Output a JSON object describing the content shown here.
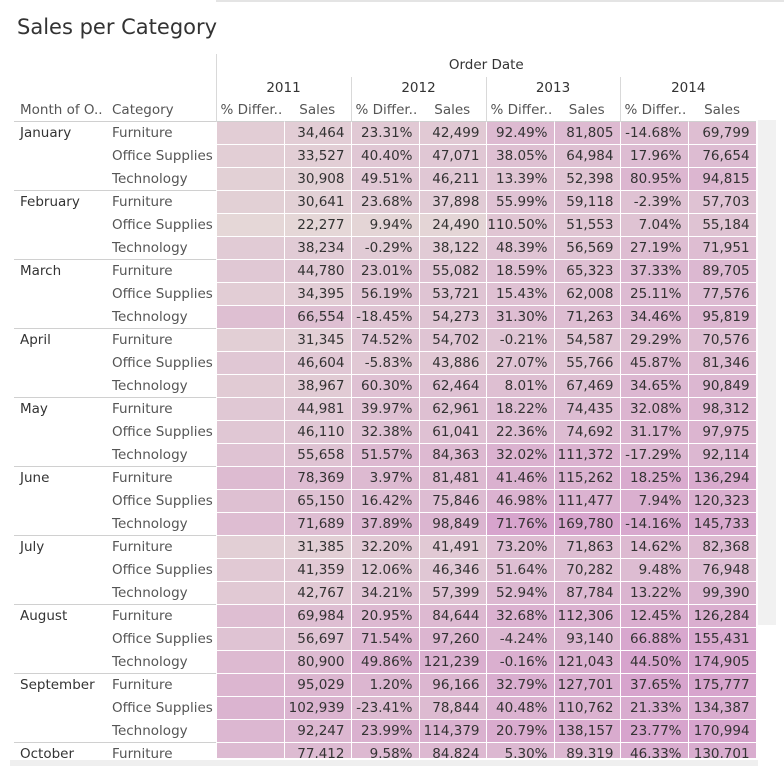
{
  "title": "Sales per Category",
  "header": {
    "order_date": "Order Date",
    "month_col": "Month of O..",
    "category_col": "Category",
    "diff_col": "% Differ..",
    "sales_col": "Sales"
  },
  "colors": {
    "low": "#e6ddd8",
    "high": "#d7a4cd"
  },
  "chart_data": {
    "type": "table",
    "title": "Sales per Category",
    "columns": [
      "2011",
      "2012",
      "2013",
      "2014"
    ],
    "rows": [
      {
        "month": "January",
        "categories": [
          {
            "name": "Furniture",
            "diff": [
              "",
              "23.31%",
              "92.49%",
              "-14.68%"
            ],
            "sales": [
              "34,464",
              "42,499",
              "81,805",
              "69,799"
            ]
          },
          {
            "name": "Office Supplies",
            "diff": [
              "",
              "40.40%",
              "38.05%",
              "17.96%"
            ],
            "sales": [
              "33,527",
              "47,071",
              "64,984",
              "76,654"
            ]
          },
          {
            "name": "Technology",
            "diff": [
              "",
              "49.51%",
              "13.39%",
              "80.95%"
            ],
            "sales": [
              "30,908",
              "46,211",
              "52,398",
              "94,815"
            ]
          }
        ]
      },
      {
        "month": "February",
        "categories": [
          {
            "name": "Furniture",
            "diff": [
              "",
              "23.68%",
              "55.99%",
              "-2.39%"
            ],
            "sales": [
              "30,641",
              "37,898",
              "59,118",
              "57,703"
            ]
          },
          {
            "name": "Office Supplies",
            "diff": [
              "",
              "9.94%",
              "110.50%",
              "7.04%"
            ],
            "sales": [
              "22,277",
              "24,490",
              "51,553",
              "55,184"
            ]
          },
          {
            "name": "Technology",
            "diff": [
              "",
              "-0.29%",
              "48.39%",
              "27.19%"
            ],
            "sales": [
              "38,234",
              "38,122",
              "56,569",
              "71,951"
            ]
          }
        ]
      },
      {
        "month": "March",
        "categories": [
          {
            "name": "Furniture",
            "diff": [
              "",
              "23.01%",
              "18.59%",
              "37.33%"
            ],
            "sales": [
              "44,780",
              "55,082",
              "65,323",
              "89,705"
            ]
          },
          {
            "name": "Office Supplies",
            "diff": [
              "",
              "56.19%",
              "15.43%",
              "25.11%"
            ],
            "sales": [
              "34,395",
              "53,721",
              "62,008",
              "77,576"
            ]
          },
          {
            "name": "Technology",
            "diff": [
              "",
              "-18.45%",
              "31.30%",
              "34.46%"
            ],
            "sales": [
              "66,554",
              "54,273",
              "71,263",
              "95,819"
            ]
          }
        ]
      },
      {
        "month": "April",
        "categories": [
          {
            "name": "Furniture",
            "diff": [
              "",
              "74.52%",
              "-0.21%",
              "29.29%"
            ],
            "sales": [
              "31,345",
              "54,702",
              "54,587",
              "70,576"
            ]
          },
          {
            "name": "Office Supplies",
            "diff": [
              "",
              "-5.83%",
              "27.07%",
              "45.87%"
            ],
            "sales": [
              "46,604",
              "43,886",
              "55,766",
              "81,346"
            ]
          },
          {
            "name": "Technology",
            "diff": [
              "",
              "60.30%",
              "8.01%",
              "34.65%"
            ],
            "sales": [
              "38,967",
              "62,464",
              "67,469",
              "90,849"
            ]
          }
        ]
      },
      {
        "month": "May",
        "categories": [
          {
            "name": "Furniture",
            "diff": [
              "",
              "39.97%",
              "18.22%",
              "32.08%"
            ],
            "sales": [
              "44,981",
              "62,961",
              "74,435",
              "98,312"
            ]
          },
          {
            "name": "Office Supplies",
            "diff": [
              "",
              "32.38%",
              "22.36%",
              "31.17%"
            ],
            "sales": [
              "46,110",
              "61,041",
              "74,692",
              "97,975"
            ]
          },
          {
            "name": "Technology",
            "diff": [
              "",
              "51.57%",
              "32.02%",
              "-17.29%"
            ],
            "sales": [
              "55,658",
              "84,363",
              "111,372",
              "92,114"
            ]
          }
        ]
      },
      {
        "month": "June",
        "categories": [
          {
            "name": "Furniture",
            "diff": [
              "",
              "3.97%",
              "41.46%",
              "18.25%"
            ],
            "sales": [
              "78,369",
              "81,481",
              "115,262",
              "136,294"
            ]
          },
          {
            "name": "Office Supplies",
            "diff": [
              "",
              "16.42%",
              "46.98%",
              "7.94%"
            ],
            "sales": [
              "65,150",
              "75,846",
              "111,477",
              "120,323"
            ]
          },
          {
            "name": "Technology",
            "diff": [
              "",
              "37.89%",
              "71.76%",
              "-14.16%"
            ],
            "sales": [
              "71,689",
              "98,849",
              "169,780",
              "145,733"
            ]
          }
        ]
      },
      {
        "month": "July",
        "categories": [
          {
            "name": "Furniture",
            "diff": [
              "",
              "32.20%",
              "73.20%",
              "14.62%"
            ],
            "sales": [
              "31,385",
              "41,491",
              "71,863",
              "82,368"
            ]
          },
          {
            "name": "Office Supplies",
            "diff": [
              "",
              "12.06%",
              "51.64%",
              "9.48%"
            ],
            "sales": [
              "41,359",
              "46,346",
              "70,282",
              "76,948"
            ]
          },
          {
            "name": "Technology",
            "diff": [
              "",
              "34.21%",
              "52.94%",
              "13.22%"
            ],
            "sales": [
              "42,767",
              "57,399",
              "87,784",
              "99,390"
            ]
          }
        ]
      },
      {
        "month": "August",
        "categories": [
          {
            "name": "Furniture",
            "diff": [
              "",
              "20.95%",
              "32.68%",
              "12.45%"
            ],
            "sales": [
              "69,984",
              "84,644",
              "112,306",
              "126,284"
            ]
          },
          {
            "name": "Office Supplies",
            "diff": [
              "",
              "71.54%",
              "-4.24%",
              "66.88%"
            ],
            "sales": [
              "56,697",
              "97,260",
              "93,140",
              "155,431"
            ]
          },
          {
            "name": "Technology",
            "diff": [
              "",
              "49.86%",
              "-0.16%",
              "44.50%"
            ],
            "sales": [
              "80,900",
              "121,239",
              "121,043",
              "174,905"
            ]
          }
        ]
      },
      {
        "month": "September",
        "categories": [
          {
            "name": "Furniture",
            "diff": [
              "",
              "1.20%",
              "32.79%",
              "37.65%"
            ],
            "sales": [
              "95,029",
              "96,166",
              "127,701",
              "175,777"
            ]
          },
          {
            "name": "Office Supplies",
            "diff": [
              "",
              "-23.41%",
              "40.48%",
              "21.33%"
            ],
            "sales": [
              "102,939",
              "78,844",
              "110,762",
              "134,387"
            ]
          },
          {
            "name": "Technology",
            "diff": [
              "",
              "23.99%",
              "20.79%",
              "23.77%"
            ],
            "sales": [
              "92,247",
              "114,379",
              "138,157",
              "170,994"
            ]
          }
        ]
      },
      {
        "month": "October",
        "categories": [
          {
            "name": "Furniture",
            "diff": [
              "",
              "9.58%",
              "5.30%",
              "46.33%"
            ],
            "sales": [
              "77,412",
              "84,824",
              "89,319",
              "130,701"
            ]
          }
        ]
      }
    ]
  }
}
